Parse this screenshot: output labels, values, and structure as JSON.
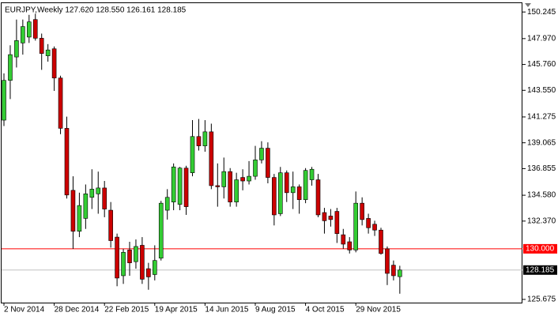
{
  "chart_data": {
    "type": "candlestick",
    "title": "EURJPY,Weekly  127.620 128.550 126.161 128.185",
    "categories": [
      "2 Nov 2014",
      null,
      null,
      null,
      null,
      null,
      null,
      null,
      "28 Dec 2014",
      null,
      null,
      null,
      null,
      null,
      null,
      null,
      "22 Feb 2015",
      null,
      null,
      null,
      null,
      null,
      null,
      null,
      "19 Apr 2015",
      null,
      null,
      null,
      null,
      null,
      null,
      null,
      "14 Jun 2015",
      null,
      null,
      null,
      null,
      null,
      null,
      null,
      "9 Aug 2015",
      null,
      null,
      null,
      null,
      null,
      null,
      null,
      "4 Oct 2015",
      null,
      null,
      null,
      null,
      null,
      null,
      null,
      "29 Nov 2015",
      null,
      null,
      null,
      null,
      null,
      null,
      null
    ],
    "open": [
      141.0,
      144.4,
      146.4,
      147.6,
      148.1,
      149.6,
      148.0,
      146.5,
      147.1,
      144.6,
      140.3,
      135.0,
      131.5,
      132.6,
      134.4,
      134.7,
      135.2,
      133.3,
      131.0,
      127.7,
      129.9,
      128.9,
      130.3,
      128.3,
      127.8,
      129.2,
      133.3,
      134.0,
      133.8,
      136.9,
      136.5,
      139.6,
      138.8,
      140.0,
      135.4,
      135.3,
      136.6,
      134.0,
      136.1,
      135.8,
      136.2,
      137.6,
      138.6,
      136.1,
      133.0,
      136.5,
      134.8,
      135.3,
      134.2,
      135.9,
      135.9,
      133.1,
      132.8,
      133.2,
      131.2,
      130.6,
      129.9,
      133.9,
      132.6,
      132.1,
      131.6,
      130.0,
      128.6,
      127.62
    ],
    "high": [
      145.0,
      147.4,
      149.6,
      149.6,
      150.0,
      150.1,
      148.4,
      147.5,
      147.3,
      144.8,
      141.3,
      136.2,
      134.8,
      135.5,
      136.8,
      136.6,
      135.8,
      134.0,
      131.3,
      130.0,
      130.6,
      130.8,
      131.0,
      128.8,
      130.3,
      134.1,
      135.1,
      137.3,
      137.0,
      137.1,
      141.0,
      141.1,
      141.0,
      140.7,
      137.3,
      137.8,
      136.9,
      136.5,
      136.8,
      137.5,
      138.8,
      139.2,
      139.1,
      136.4,
      137.0,
      136.7,
      136.6,
      135.5,
      136.9,
      137.0,
      136.4,
      133.5,
      133.4,
      133.5,
      131.7,
      131.0,
      134.9,
      134.4,
      133.0,
      132.4,
      131.8,
      130.2,
      129.0,
      128.55
    ],
    "low": [
      140.5,
      142.8,
      145.5,
      146.6,
      147.6,
      147.8,
      145.3,
      146.0,
      143.5,
      139.8,
      134.3,
      130.0,
      131.0,
      131.7,
      133.4,
      133.0,
      132.7,
      130.1,
      126.8,
      127.0,
      127.7,
      128.3,
      127.0,
      126.5,
      127.3,
      129.0,
      132.5,
      133.3,
      133.3,
      132.9,
      136.2,
      138.4,
      138.3,
      135.1,
      133.6,
      134.3,
      133.6,
      133.6,
      135.0,
      135.5,
      135.9,
      137.3,
      135.6,
      132.0,
      132.8,
      134.0,
      133.4,
      133.0,
      133.9,
      135.4,
      132.7,
      131.3,
      131.9,
      130.5,
      130.0,
      129.6,
      129.7,
      132.0,
      131.3,
      131.1,
      129.5,
      126.9,
      127.3,
      126.161
    ],
    "close": [
      144.4,
      146.6,
      147.8,
      149.0,
      149.4,
      148.0,
      146.7,
      147.0,
      144.6,
      140.3,
      134.6,
      131.5,
      133.7,
      134.7,
      135.1,
      135.2,
      133.4,
      130.7,
      127.5,
      129.7,
      128.8,
      130.2,
      127.4,
      127.6,
      129.0,
      133.9,
      134.4,
      137.0,
      136.9,
      133.6,
      139.6,
      138.8,
      140.0,
      135.4,
      135.3,
      136.6,
      134.0,
      135.9,
      135.8,
      136.2,
      137.6,
      138.6,
      136.1,
      132.9,
      136.5,
      134.8,
      135.3,
      134.2,
      136.7,
      136.8,
      132.9,
      132.4,
      132.5,
      131.3,
      130.4,
      129.9,
      133.9,
      132.5,
      131.8,
      131.6,
      129.6,
      127.9,
      127.7,
      128.185
    ],
    "up_color": "#33cc33",
    "down_color": "#cc0000",
    "ylim": [
      125.4,
      151.0
    ],
    "yticks": [
      150.245,
      {
        "value": 147.97,
        "label": "147.970"
      },
      {
        "value": 145.76,
        "label": "145.760"
      },
      {
        "value": 143.55,
        "label": "143.550"
      },
      141.275,
      139.065,
      136.855,
      {
        "value": 134.58,
        "label": "134.580"
      },
      {
        "value": 132.37,
        "label": "132.370"
      },
      125.675
    ],
    "levels": [
      {
        "value": 130,
        "label": "130.000",
        "color": "#ff0000"
      },
      {
        "value": 128.185,
        "label": "128.185",
        "color": "#c0c0c0"
      }
    ],
    "grid": false
  }
}
